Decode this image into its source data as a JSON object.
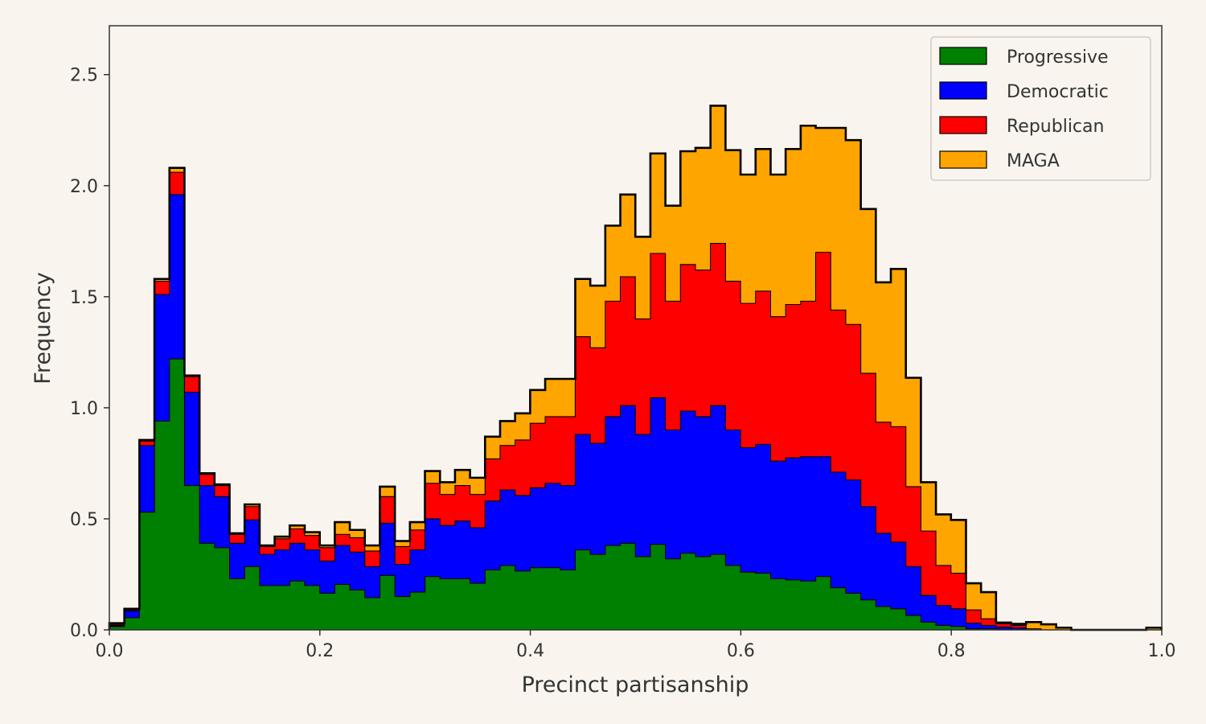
{
  "chart_data": {
    "type": "histogram-stacked-step",
    "title": "",
    "xlabel": "Precinct partisanship",
    "ylabel": "Frequency",
    "xlim": [
      0.0,
      1.0
    ],
    "ylim": [
      0.0,
      2.72
    ],
    "xticks": [
      "0.0",
      "0.2",
      "0.4",
      "0.6",
      "0.8",
      "1.0"
    ],
    "yticks": [
      "0.0",
      "0.5",
      "1.0",
      "1.5",
      "2.0",
      "2.5"
    ],
    "grid": false,
    "legend_position": "top-right",
    "bin_width": 0.01428,
    "series": [
      {
        "name": "Progressive",
        "color": "#008000",
        "values": [
          0.015,
          0.055,
          0.53,
          0.94,
          1.22,
          0.65,
          0.39,
          0.37,
          0.23,
          0.285,
          0.2,
          0.2,
          0.22,
          0.2,
          0.165,
          0.205,
          0.18,
          0.145,
          0.245,
          0.15,
          0.17,
          0.24,
          0.23,
          0.23,
          0.21,
          0.27,
          0.29,
          0.265,
          0.28,
          0.28,
          0.27,
          0.36,
          0.34,
          0.38,
          0.39,
          0.33,
          0.385,
          0.32,
          0.345,
          0.33,
          0.34,
          0.29,
          0.26,
          0.255,
          0.23,
          0.225,
          0.22,
          0.24,
          0.19,
          0.165,
          0.135,
          0.105,
          0.095,
          0.065,
          0.035,
          0.02,
          0.015,
          0.005,
          0.005,
          0.003,
          0.003,
          0,
          0,
          0,
          0,
          0,
          0,
          0,
          0,
          0
        ]
      },
      {
        "name": "Democratic",
        "color": "#0000ff",
        "values": [
          0.005,
          0.03,
          0.3,
          0.57,
          0.74,
          0.42,
          0.26,
          0.23,
          0.16,
          0.21,
          0.14,
          0.16,
          0.17,
          0.16,
          0.145,
          0.175,
          0.17,
          0.14,
          0.235,
          0.145,
          0.19,
          0.26,
          0.24,
          0.26,
          0.25,
          0.31,
          0.34,
          0.34,
          0.36,
          0.38,
          0.38,
          0.52,
          0.5,
          0.58,
          0.62,
          0.55,
          0.66,
          0.58,
          0.64,
          0.63,
          0.67,
          0.61,
          0.56,
          0.58,
          0.53,
          0.55,
          0.56,
          0.54,
          0.52,
          0.51,
          0.42,
          0.33,
          0.3,
          0.22,
          0.12,
          0.09,
          0.08,
          0.025,
          0.015,
          0.01,
          0.007,
          0,
          0,
          0,
          0,
          0,
          0,
          0,
          0,
          0
        ]
      },
      {
        "name": "Republican",
        "color": "#ff0000",
        "values": [
          0.005,
          0.005,
          0.02,
          0.06,
          0.1,
          0.07,
          0.05,
          0.05,
          0.04,
          0.06,
          0.035,
          0.05,
          0.065,
          0.065,
          0.06,
          0.05,
          0.065,
          0.07,
          0.12,
          0.08,
          0.09,
          0.16,
          0.14,
          0.16,
          0.15,
          0.19,
          0.2,
          0.25,
          0.29,
          0.3,
          0.31,
          0.44,
          0.43,
          0.52,
          0.58,
          0.52,
          0.65,
          0.58,
          0.66,
          0.66,
          0.73,
          0.67,
          0.65,
          0.69,
          0.65,
          0.69,
          0.7,
          0.92,
          0.73,
          0.7,
          0.6,
          0.5,
          0.52,
          0.36,
          0.29,
          0.18,
          0.16,
          0.06,
          0.03,
          0.015,
          0.01,
          0.005,
          0,
          0,
          0,
          0,
          0,
          0,
          0,
          0
        ]
      },
      {
        "name": "MAGA",
        "color": "#ffa500",
        "values": [
          0.005,
          0.005,
          0.005,
          0.01,
          0.02,
          0.005,
          0.005,
          0.005,
          0.005,
          0.01,
          0.005,
          0.01,
          0.015,
          0.015,
          0.01,
          0.055,
          0.035,
          0.025,
          0.045,
          0.025,
          0.035,
          0.055,
          0.055,
          0.07,
          0.075,
          0.1,
          0.11,
          0.12,
          0.15,
          0.17,
          0.17,
          0.26,
          0.28,
          0.34,
          0.37,
          0.37,
          0.45,
          0.43,
          0.51,
          0.55,
          0.62,
          0.59,
          0.58,
          0.64,
          0.64,
          0.7,
          0.79,
          0.56,
          0.82,
          0.83,
          0.74,
          0.63,
          0.71,
          0.49,
          0.22,
          0.23,
          0.24,
          0.12,
          0.12,
          0.005,
          0.007,
          0.03,
          0.025,
          0.01,
          0,
          0,
          0,
          0,
          0,
          0.01
        ]
      }
    ]
  }
}
